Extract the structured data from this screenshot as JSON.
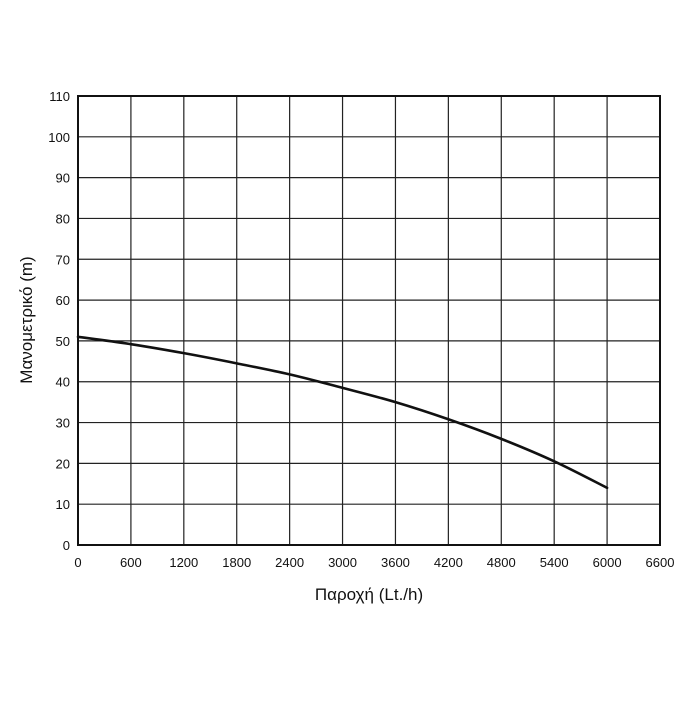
{
  "chart_data": {
    "type": "line",
    "title": "",
    "xlabel": "Παροχή (Lt./h)",
    "ylabel": "Μανομετρικό  (m)",
    "xlim": [
      0,
      6600
    ],
    "ylim": [
      0,
      110
    ],
    "grid": true,
    "x_ticks": [
      "0",
      "600",
      "1200",
      "1800",
      "2400",
      "3000",
      "3600",
      "4200",
      "4800",
      "5400",
      "6000",
      "6600"
    ],
    "y_ticks": [
      "0",
      "10",
      "20",
      "30",
      "40",
      "50",
      "60",
      "70",
      "80",
      "90",
      "100",
      "110"
    ],
    "series": [
      {
        "x": [
          0,
          600,
          1200,
          1800,
          2400,
          3000,
          3600,
          4200,
          4800,
          5400,
          6000
        ],
        "y": [
          51,
          49.2,
          47,
          44.5,
          41.8,
          38.5,
          35,
          30.8,
          26,
          20.5,
          14
        ]
      }
    ],
    "colors": {
      "line": "#111111",
      "grid": "#222222",
      "frame": "#111111"
    }
  }
}
